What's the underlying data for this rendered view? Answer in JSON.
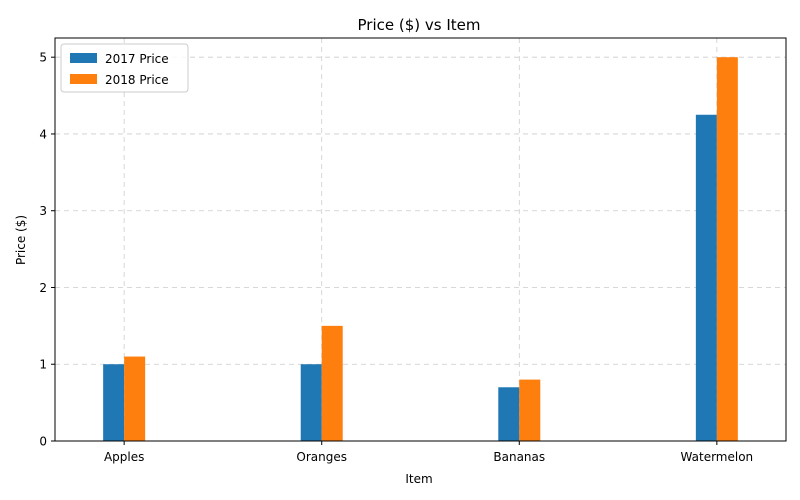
{
  "chart_data": {
    "type": "bar",
    "title": "Price ($) vs Item",
    "xlabel": "Item",
    "ylabel": "Price ($)",
    "categories": [
      "Apples",
      "Oranges",
      "Bananas",
      "Watermelon"
    ],
    "series": [
      {
        "name": "2017 Price",
        "values": [
          1.0,
          1.0,
          0.7,
          4.25
        ],
        "color": "#1f77b4"
      },
      {
        "name": "2018 Price",
        "values": [
          1.1,
          1.5,
          0.8,
          5.0
        ],
        "color": "#ff7f0e"
      }
    ],
    "ylim": [
      0,
      5.25
    ],
    "yticks": [
      0,
      1,
      2,
      3,
      4,
      5
    ],
    "grid": true,
    "legend_position": "top-left"
  }
}
